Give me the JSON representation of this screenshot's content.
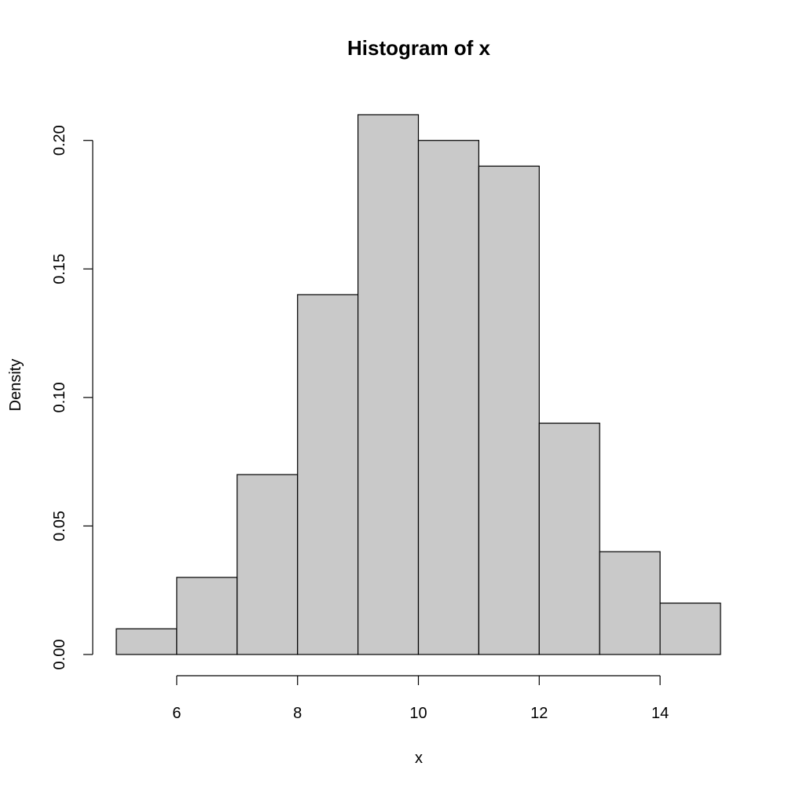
{
  "chart_data": {
    "type": "bar",
    "title": "Histogram of x",
    "xlabel": "x",
    "ylabel": "Density",
    "bins": [
      {
        "start": 5,
        "end": 6,
        "density": 0.01
      },
      {
        "start": 6,
        "end": 7,
        "density": 0.03
      },
      {
        "start": 7,
        "end": 8,
        "density": 0.07
      },
      {
        "start": 8,
        "end": 9,
        "density": 0.14
      },
      {
        "start": 9,
        "end": 10,
        "density": 0.21
      },
      {
        "start": 10,
        "end": 11,
        "density": 0.2
      },
      {
        "start": 11,
        "end": 12,
        "density": 0.19
      },
      {
        "start": 12,
        "end": 13,
        "density": 0.09
      },
      {
        "start": 13,
        "end": 14,
        "density": 0.04
      },
      {
        "start": 14,
        "end": 15,
        "density": 0.02
      }
    ],
    "xlim": [
      5,
      15
    ],
    "ylim": [
      0,
      0.21
    ],
    "x_ticks": [
      6,
      8,
      10,
      12,
      14
    ],
    "x_tick_labels": [
      "6",
      "8",
      "10",
      "12",
      "14"
    ],
    "y_ticks": [
      0,
      0.05,
      0.1,
      0.15,
      0.2
    ],
    "y_tick_labels": [
      "0.00",
      "0.05",
      "0.10",
      "0.15",
      "0.20"
    ],
    "grid": false,
    "colors": {
      "bar_fill": "#c9c9c9",
      "bar_stroke": "#000000",
      "axis": "#000000",
      "background": "#ffffff"
    }
  }
}
